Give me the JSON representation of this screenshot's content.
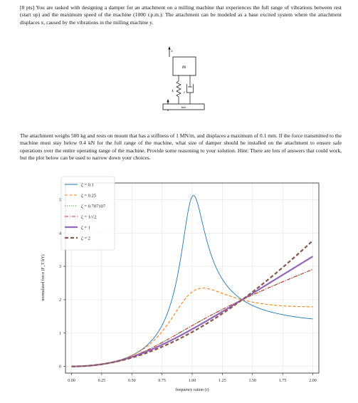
{
  "problem": {
    "intro": "[8 pts] You are tasked with designing a damper for an attachment on a milling machine that experiences the full range of vibrations between rest (start up) and the maximum speed of the machine (1000 r.p.m.): The attachment can be modeled as a base excited system where the attachment displaces x, caused by the vibrations in the milling machine y.",
    "details": "The attachment weighs 500 kg and rests on mount that has a stiffness of 1 MN/m, and displaces a maximum of 0.1 mm. If the force transmitted to the machine must stay below 0.4 kN for the full range of the machine, what size of damper should be installed on the attachment to ensure safe operations over the entire operating range of the machine. Provide some reasoning to your solution. Hint: There are lots of answers that could work, but the plot below can be used to narrow down your choices."
  },
  "schematic": {
    "mass_label": "m",
    "spring_label": "k",
    "damper_label": "c",
    "base_label": "base",
    "x_label": "x",
    "y_label": "y"
  },
  "chart_data": {
    "type": "line",
    "title": "",
    "xlabel": "frequency ration (r)",
    "ylabel": "normalized force (F_T/kY)",
    "xlim": [
      -0.05,
      2.05
    ],
    "ylim": [
      -0.2,
      5.5
    ],
    "xticks": [
      "0.00",
      "0.25",
      "0.50",
      "0.75",
      "1.00",
      "1.25",
      "1.50",
      "1.75",
      "2.00"
    ],
    "yticks": [
      "0",
      "1",
      "2",
      "3",
      "4",
      "5"
    ],
    "grid": true,
    "legend_position": "top-left",
    "series": [
      {
        "name": "ζ = 0.1",
        "zeta": 0.1,
        "color": "#1f77b4",
        "dash": "",
        "width": 0.9
      },
      {
        "name": "ζ = 0.25",
        "zeta": 0.25,
        "color": "#ff7f0e",
        "dash": "4,2.5",
        "width": 1.1
      },
      {
        "name": "ζ = 0.707107",
        "zeta": 0.707107,
        "color": "#2ca02c",
        "dash": "1.2,1.8",
        "width": 1.1
      },
      {
        "name": "ζ = 1/√2",
        "zeta": 0.707107,
        "color": "#d62728",
        "dash": "5,2,1,2",
        "width": 1.1
      },
      {
        "name": "ζ = 1",
        "zeta": 1.0,
        "color": "#9467bd",
        "dash": "",
        "width": 2.2
      },
      {
        "name": "ζ = 2",
        "zeta": 2.0,
        "color": "#8c564b",
        "dash": "5,3",
        "width": 2.2
      }
    ]
  }
}
